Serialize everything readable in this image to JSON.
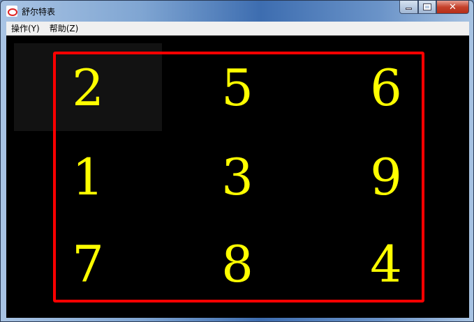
{
  "window": {
    "title": "舒尔特表",
    "icon": "eye-logo-icon"
  },
  "menu": [
    {
      "label": "操作(Y)"
    },
    {
      "label": "帮助(Z)"
    }
  ],
  "grid": {
    "numbers": [
      2,
      5,
      6,
      1,
      3,
      9,
      7,
      8,
      4
    ],
    "digit_color": "#ffff00",
    "border_color": "#ff0000",
    "highlighted_cell": 0
  }
}
